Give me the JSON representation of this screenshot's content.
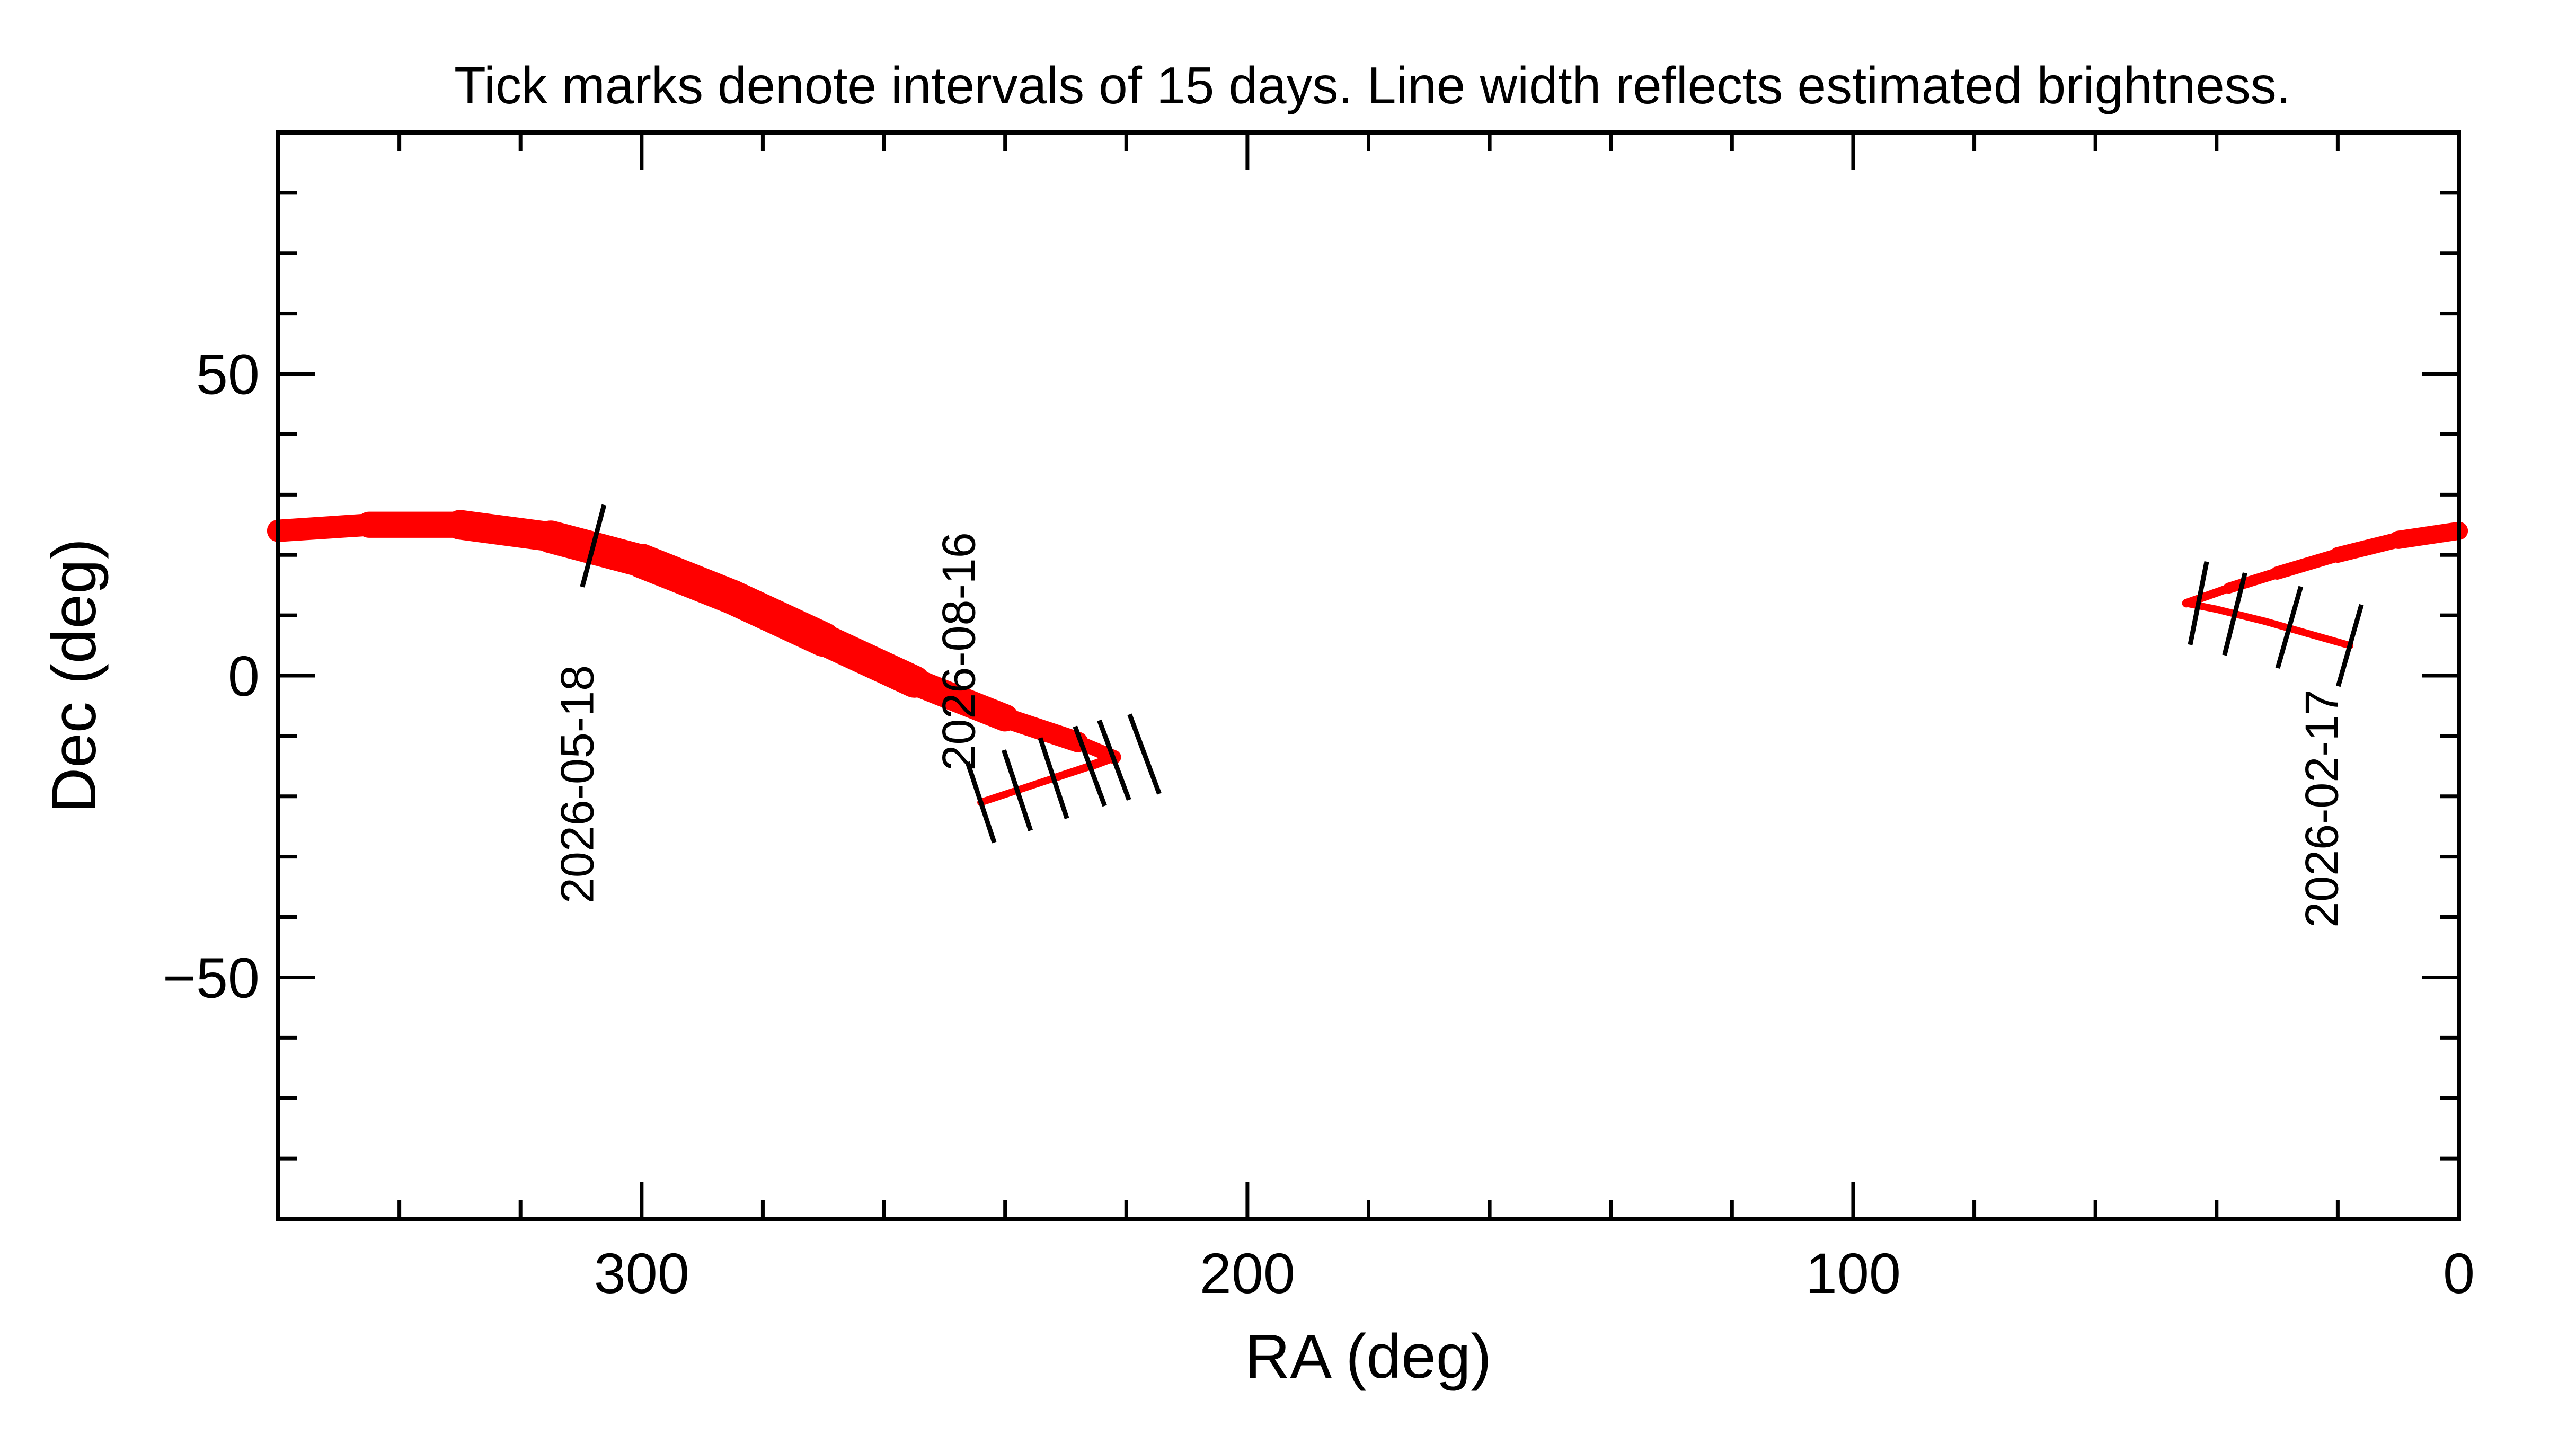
{
  "chart_data": {
    "type": "line",
    "title": "Tick marks denote intervals of 15 days.  Line width reflects estimated brightness.",
    "xlabel": "RA (deg)",
    "ylabel": "Dec (deg)",
    "xlim": [
      360,
      0
    ],
    "ylim": [
      -90,
      90
    ],
    "x_ticks": [
      300,
      200,
      100,
      0
    ],
    "y_ticks": [
      50,
      0,
      -50
    ],
    "x_tick_labels": [
      "300",
      "200",
      "100",
      "0"
    ],
    "y_tick_labels": [
      "50",
      "0",
      "−50"
    ],
    "grid": false,
    "line_color": "#ff0000",
    "mark_color": "#000000",
    "segments": [
      {
        "points": [
          {
            "ra": 45,
            "dec": 12,
            "w": 1.2
          },
          {
            "ra": 40,
            "dec": 11,
            "w": 1.2
          },
          {
            "ra": 32,
            "dec": 9,
            "w": 1.2
          },
          {
            "ra": 25,
            "dec": 7,
            "w": 1.2
          },
          {
            "ra": 18,
            "dec": 5,
            "w": 1.2
          }
        ]
      },
      {
        "points": [
          {
            "ra": 45,
            "dec": 12,
            "w": 1.2
          },
          {
            "ra": 38,
            "dec": 14.5,
            "w": 1.6
          },
          {
            "ra": 30,
            "dec": 17,
            "w": 2.0
          },
          {
            "ra": 20,
            "dec": 20,
            "w": 2.4
          },
          {
            "ra": 10,
            "dec": 22.5,
            "w": 2.8
          },
          {
            "ra": 0,
            "dec": 24,
            "w": 3.2
          }
        ]
      },
      {
        "points": [
          {
            "ra": 360,
            "dec": 24,
            "w": 3.4
          },
          {
            "ra": 345,
            "dec": 25,
            "w": 4.0
          },
          {
            "ra": 330,
            "dec": 25,
            "w": 4.6
          },
          {
            "ra": 315,
            "dec": 23,
            "w": 5.2
          },
          {
            "ra": 300,
            "dec": 19,
            "w": 5.6
          },
          {
            "ra": 285,
            "dec": 13,
            "w": 5.8
          },
          {
            "ra": 270,
            "dec": 6,
            "w": 5.6
          },
          {
            "ra": 255,
            "dec": -1,
            "w": 5.0
          },
          {
            "ra": 240,
            "dec": -7,
            "w": 4.0
          },
          {
            "ra": 228,
            "dec": -11,
            "w": 2.8
          },
          {
            "ra": 222,
            "dec": -13.5,
            "w": 1.8
          }
        ]
      },
      {
        "points": [
          {
            "ra": 222,
            "dec": -13.5,
            "w": 1.6
          },
          {
            "ra": 226,
            "dec": -15,
            "w": 1.4
          },
          {
            "ra": 232,
            "dec": -17,
            "w": 1.2
          },
          {
            "ra": 238,
            "dec": -19,
            "w": 1.2
          },
          {
            "ra": 244,
            "dec": -21,
            "w": 1.2
          }
        ]
      }
    ],
    "interval_marks": [
      {
        "ra": 43,
        "dec": 12
      },
      {
        "ra": 37,
        "dec": 10.2
      },
      {
        "ra": 28,
        "dec": 8
      },
      {
        "ra": 18,
        "dec": 5
      },
      {
        "ra": 308,
        "dec": 21.5
      },
      {
        "ra": 217,
        "dec": -13
      },
      {
        "ra": 222,
        "dec": -14
      },
      {
        "ra": 226,
        "dec": -15
      },
      {
        "ra": 232,
        "dec": -17
      },
      {
        "ra": 238,
        "dec": -19
      },
      {
        "ra": 244,
        "dec": -21
      }
    ],
    "date_labels": [
      {
        "text": "2026-05-18",
        "ra": 308,
        "dec": -18
      },
      {
        "text": "2026-08-16",
        "ra": 245,
        "dec": 4
      },
      {
        "text": "2026-02-17",
        "ra": 20,
        "dec": -22
      }
    ]
  }
}
